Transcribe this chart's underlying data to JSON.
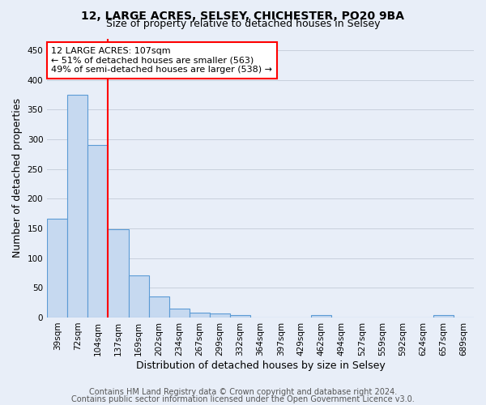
{
  "title1": "12, LARGE ACRES, SELSEY, CHICHESTER, PO20 9BA",
  "title2": "Size of property relative to detached houses in Selsey",
  "xlabel": "Distribution of detached houses by size in Selsey",
  "ylabel": "Number of detached properties",
  "footer1": "Contains HM Land Registry data © Crown copyright and database right 2024.",
  "footer2": "Contains public sector information licensed under the Open Government Licence v3.0.",
  "bar_labels": [
    "39sqm",
    "72sqm",
    "104sqm",
    "137sqm",
    "169sqm",
    "202sqm",
    "234sqm",
    "267sqm",
    "299sqm",
    "332sqm",
    "364sqm",
    "397sqm",
    "429sqm",
    "462sqm",
    "494sqm",
    "527sqm",
    "559sqm",
    "592sqm",
    "624sqm",
    "657sqm",
    "689sqm"
  ],
  "bar_values": [
    167,
    375,
    290,
    149,
    71,
    35,
    15,
    8,
    7,
    4,
    0,
    0,
    0,
    4,
    0,
    0,
    0,
    0,
    0,
    4,
    0
  ],
  "bar_color": "#c6d9f0",
  "bar_edge_color": "#5b9bd5",
  "annotation_line1": "12 LARGE ACRES: 107sqm",
  "annotation_line2": "← 51% of detached houses are smaller (563)",
  "annotation_line3": "49% of semi-detached houses are larger (538) →",
  "annotation_box_color": "white",
  "annotation_box_edge_color": "red",
  "redline_bar_index": 2,
  "ylim": [
    0,
    470
  ],
  "yticks": [
    0,
    50,
    100,
    150,
    200,
    250,
    300,
    350,
    400,
    450
  ],
  "background_color": "#e8eef8",
  "grid_color": "#c8d0dc",
  "title_fontsize": 10,
  "subtitle_fontsize": 9,
  "axis_label_fontsize": 9,
  "tick_fontsize": 7.5,
  "annotation_fontsize": 8,
  "footer_fontsize": 7
}
